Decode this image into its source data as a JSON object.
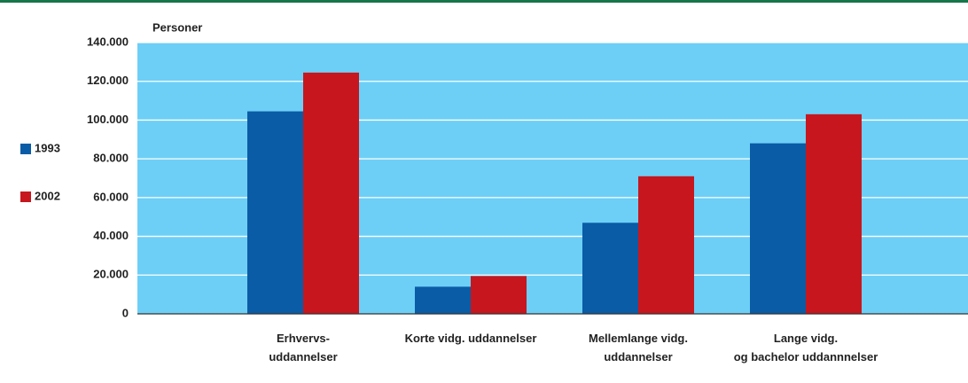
{
  "chart_data": {
    "type": "bar",
    "y_label": "Personer",
    "categories": [
      "Erhvervs-\nuddannelser",
      "Korte vidg. uddannelser",
      "Mellemlange vidg.\nuddannelser",
      "Lange vidg.\nog bachelor uddannnelser"
    ],
    "series": [
      {
        "name": "1993",
        "color": "#0a5ca6",
        "values": [
          104500,
          14000,
          47000,
          88000
        ]
      },
      {
        "name": "2002",
        "color": "#c7161e",
        "values": [
          124500,
          19500,
          71000,
          103000
        ]
      }
    ],
    "ylim": [
      0,
      140000
    ],
    "yticks": [
      {
        "value": 0,
        "label": "0"
      },
      {
        "value": 20000,
        "label": "20.000"
      },
      {
        "value": 40000,
        "label": "40.000"
      },
      {
        "value": 60000,
        "label": "60.000"
      },
      {
        "value": 80000,
        "label": "80.000"
      },
      {
        "value": 100000,
        "label": "100.000"
      },
      {
        "value": 120000,
        "label": "120.000"
      },
      {
        "value": 140000,
        "label": "140.000"
      }
    ],
    "grid": true,
    "background": "#6dcff6"
  }
}
